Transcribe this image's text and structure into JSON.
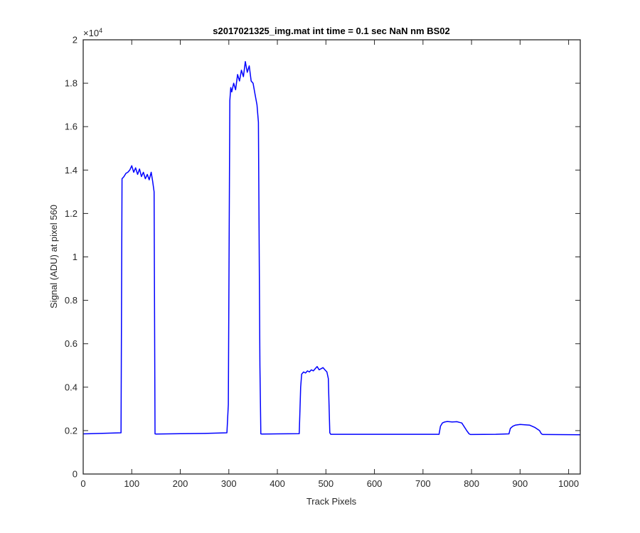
{
  "chart_data": {
    "type": "line",
    "title": "s2017021325_img.mat int time = 0.1 sec  NaN nm BS02",
    "xlabel": "Track Pixels",
    "ylabel": "Signal (ADU) at pixel 560",
    "xlim": [
      0,
      1024
    ],
    "ylim": [
      0,
      20000
    ],
    "x_ticks": [
      0,
      100,
      200,
      300,
      400,
      500,
      600,
      700,
      800,
      900,
      1000
    ],
    "x_tick_labels": [
      "0",
      "100",
      "200",
      "300",
      "400",
      "500",
      "600",
      "700",
      "800",
      "900",
      "1000"
    ],
    "y_ticks": [
      0,
      2000,
      4000,
      6000,
      8000,
      10000,
      12000,
      14000,
      16000,
      18000,
      20000
    ],
    "y_tick_labels": [
      "0",
      "0.2",
      "0.4",
      "0.6",
      "0.8",
      "1",
      "1.2",
      "1.4",
      "1.6",
      "1.8",
      "2"
    ],
    "y_exponent": {
      "base": "×10",
      "power": "4"
    },
    "grid": false,
    "series": [
      {
        "color": "#0000ff",
        "x": [
          0,
          78,
          80,
          84,
          88,
          92,
          96,
          100,
          104,
          108,
          112,
          116,
          120,
          124,
          128,
          132,
          136,
          140,
          143,
          146,
          148,
          150,
          200,
          250,
          296,
          299,
          302,
          304,
          306,
          310,
          314,
          318,
          322,
          326,
          330,
          334,
          338,
          342,
          346,
          350,
          354,
          358,
          361,
          364,
          366,
          368,
          400,
          445,
          448,
          450,
          454,
          458,
          462,
          466,
          470,
          474,
          478,
          482,
          486,
          490,
          494,
          498,
          502,
          505,
          508,
          510,
          520,
          600,
          733,
          736,
          740,
          745,
          750,
          760,
          770,
          775,
          780,
          790,
          795,
          798,
          800,
          850,
          877,
          880,
          885,
          890,
          900,
          910,
          920,
          930,
          940,
          944,
          947,
          950,
          1024
        ],
        "y": [
          1850,
          1900,
          13600,
          13700,
          13850,
          13900,
          14000,
          14200,
          13900,
          14100,
          13800,
          14050,
          13700,
          13900,
          13600,
          13800,
          13550,
          13900,
          13500,
          13000,
          1850,
          1840,
          1860,
          1870,
          1900,
          3200,
          17200,
          17800,
          17600,
          18000,
          17700,
          18400,
          18100,
          18600,
          18300,
          19000,
          18500,
          18800,
          18100,
          18000,
          17500,
          17000,
          16200,
          5000,
          1850,
          1840,
          1850,
          1860,
          4000,
          4600,
          4700,
          4650,
          4750,
          4700,
          4800,
          4750,
          4850,
          4950,
          4800,
          4850,
          4900,
          4800,
          4700,
          4400,
          1900,
          1830,
          1830,
          1830,
          1830,
          2200,
          2350,
          2400,
          2420,
          2400,
          2410,
          2380,
          2350,
          2000,
          1850,
          1820,
          1820,
          1830,
          1850,
          2100,
          2200,
          2250,
          2280,
          2270,
          2250,
          2150,
          2000,
          1850,
          1820,
          1820,
          1810
        ]
      }
    ]
  }
}
